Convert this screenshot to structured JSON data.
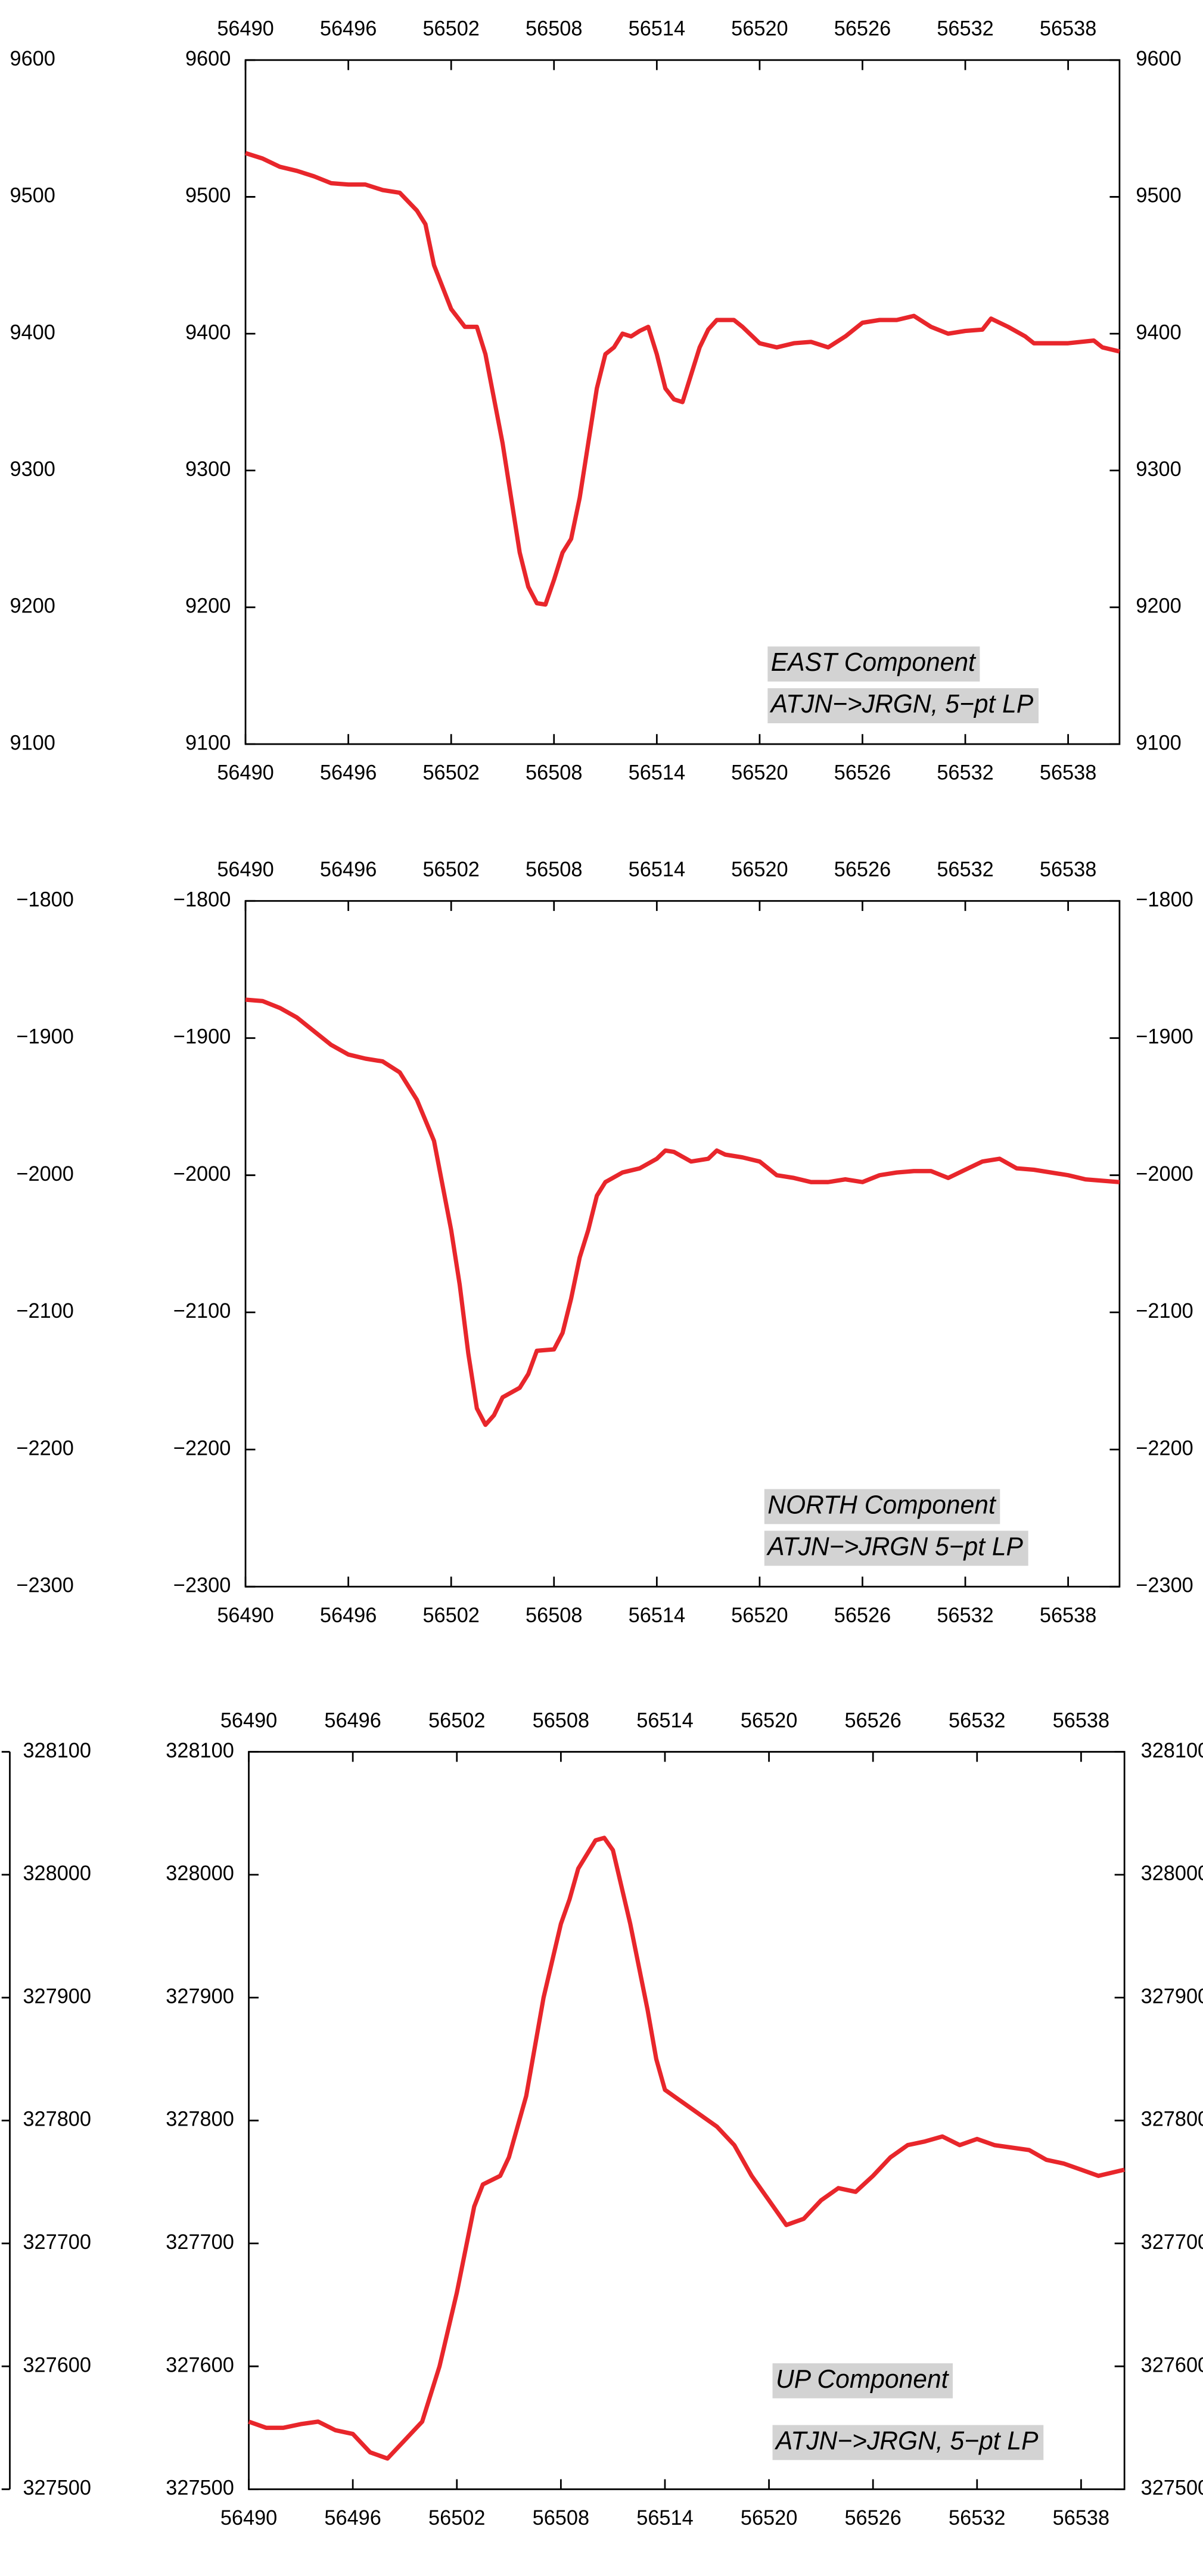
{
  "chart_data": [
    {
      "type": "line",
      "color": "#e8262b",
      "xlim": [
        56490,
        56541
      ],
      "ylim": [
        9100,
        9600
      ],
      "xticks": [
        56490,
        56496,
        56502,
        56508,
        56514,
        56520,
        56526,
        56532,
        56538
      ],
      "yticks": [
        9100,
        9200,
        9300,
        9400,
        9500,
        9600
      ],
      "annotations": [
        "EAST Component",
        "ATJN−>JRGN, 5−pt LP"
      ],
      "x": [
        56490,
        56491,
        56492,
        56493,
        56494,
        56495,
        56496,
        56497,
        56498,
        56499,
        56500,
        56500.5,
        56501,
        56502,
        56502.8,
        56503.5,
        56504,
        56505,
        56505.5,
        56506,
        56506.5,
        56507,
        56507.5,
        56508,
        56508.5,
        56509,
        56509.5,
        56510,
        56510.5,
        56511,
        56511.5,
        56512,
        56512.5,
        56513,
        56513.5,
        56514,
        56514.5,
        56515,
        56515.5,
        56516,
        56516.5,
        56517,
        56517.5,
        56518.5,
        56519,
        56520,
        56521,
        56522,
        56523,
        56524,
        56525,
        56526,
        56527,
        56528,
        56529,
        56530,
        56531,
        56532,
        56533,
        56533.5,
        56534.5,
        56535.5,
        56536,
        56538,
        56539.5,
        56540,
        56541
      ],
      "series": [
        {
          "values": [
            9532,
            9528,
            9522,
            9519,
            9515,
            9510,
            9509,
            9509,
            9505,
            9503,
            9490,
            9480,
            9450,
            9418,
            9405,
            9405,
            9385,
            9320,
            9280,
            9240,
            9215,
            9203,
            9202,
            9220,
            9240,
            9250,
            9280,
            9320,
            9360,
            9385,
            9390,
            9400,
            9398,
            9402,
            9405,
            9385,
            9360,
            9352,
            9350,
            9370,
            9390,
            9403,
            9410,
            9410,
            9405,
            9393,
            9390,
            9393,
            9394,
            9390,
            9398,
            9408,
            9410,
            9410,
            9413,
            9405,
            9400,
            9402,
            9403,
            9411,
            9405,
            9398,
            9393,
            9393,
            9395,
            9390,
            9387
          ]
        }
      ]
    },
    {
      "type": "line",
      "color": "#e8262b",
      "xlim": [
        56490,
        56541
      ],
      "ylim": [
        -2300,
        -1800
      ],
      "xticks": [
        56490,
        56496,
        56502,
        56508,
        56514,
        56520,
        56526,
        56532,
        56538
      ],
      "yticks": [
        {
          "value": -2300,
          "label": "−2300"
        },
        {
          "value": -2200,
          "label": "−2200"
        },
        {
          "value": -2100,
          "label": "−2100"
        },
        {
          "value": -2000,
          "label": "−2000"
        },
        {
          "value": -1900,
          "label": "−1900"
        },
        {
          "value": -1800,
          "label": "−1800"
        }
      ],
      "annotations": [
        "NORTH Component",
        "ATJN−>JRGN 5−pt LP"
      ],
      "x": [
        56490,
        56491,
        56492,
        56493,
        56494,
        56495,
        56496,
        56497,
        56498,
        56499,
        56500,
        56501,
        56502,
        56502.5,
        56503,
        56503.5,
        56504,
        56504.5,
        56505,
        56506,
        56506.5,
        56507,
        56508,
        56508.5,
        56509,
        56509.5,
        56510,
        56510.5,
        56511,
        56512,
        56513,
        56514,
        56514.5,
        56515,
        56516,
        56517,
        56517.5,
        56518,
        56519,
        56520,
        56521,
        56522,
        56523,
        56524,
        56525,
        56526,
        56527,
        56528,
        56529,
        56530,
        56531,
        56532,
        56533,
        56534,
        56535,
        56536,
        56537,
        56538,
        56539,
        56541
      ],
      "series": [
        {
          "values": [
            -1872,
            -1873,
            -1878,
            -1885,
            -1895,
            -1905,
            -1912,
            -1915,
            -1917,
            -1925,
            -1945,
            -1975,
            -2040,
            -2080,
            -2130,
            -2170,
            -2182,
            -2175,
            -2162,
            -2155,
            -2145,
            -2128,
            -2127,
            -2115,
            -2090,
            -2060,
            -2040,
            -2015,
            -2005,
            -1998,
            -1995,
            -1988,
            -1982,
            -1983,
            -1990,
            -1988,
            -1982,
            -1985,
            -1987,
            -1990,
            -2000,
            -2002,
            -2005,
            -2005,
            -2003,
            -2005,
            -2000,
            -1998,
            -1997,
            -1997,
            -2002,
            -1996,
            -1990,
            -1988,
            -1995,
            -1996,
            -1998,
            -2000,
            -2003,
            -2005
          ]
        }
      ]
    },
    {
      "type": "line",
      "color": "#e8262b",
      "xlim": [
        56490,
        56540.5
      ],
      "ylim": [
        327500,
        328100
      ],
      "xticks": [
        56490,
        56496,
        56502,
        56508,
        56514,
        56520,
        56526,
        56532,
        56538
      ],
      "yticks": [
        327500,
        327600,
        327700,
        327800,
        327900,
        328000,
        328100
      ],
      "annotations": [
        "UP Component",
        "ATJN−>JRGN, 5−pt LP"
      ],
      "x": [
        56490,
        56491,
        56492,
        56493,
        56494,
        56495,
        56496,
        56497,
        56498,
        56499,
        56500,
        56501,
        56502,
        56503,
        56503.5,
        56504.5,
        56505,
        56506,
        56507,
        56508,
        56508.5,
        56509,
        56510,
        56510.5,
        56511,
        56512,
        56513,
        56513.5,
        56514,
        56515,
        56516,
        56517,
        56518,
        56519,
        56520,
        56521,
        56522,
        56523,
        56524,
        56525,
        56526,
        56527,
        56528,
        56529,
        56530,
        56531,
        56532,
        56533,
        56534,
        56535,
        56536,
        56537,
        56538,
        56539,
        56540.5
      ],
      "series": [
        {
          "values": [
            327555,
            327550,
            327550,
            327553,
            327555,
            327548,
            327545,
            327530,
            327525,
            327540,
            327555,
            327600,
            327660,
            327730,
            327748,
            327755,
            327770,
            327820,
            327900,
            327960,
            327980,
            328005,
            328028,
            328030,
            328020,
            327960,
            327890,
            327850,
            327825,
            327815,
            327805,
            327795,
            327780,
            327755,
            327735,
            327715,
            327720,
            327735,
            327745,
            327742,
            327755,
            327770,
            327780,
            327783,
            327787,
            327780,
            327785,
            327780,
            327778,
            327776,
            327768,
            327765,
            327760,
            327755,
            327760
          ]
        }
      ]
    }
  ]
}
